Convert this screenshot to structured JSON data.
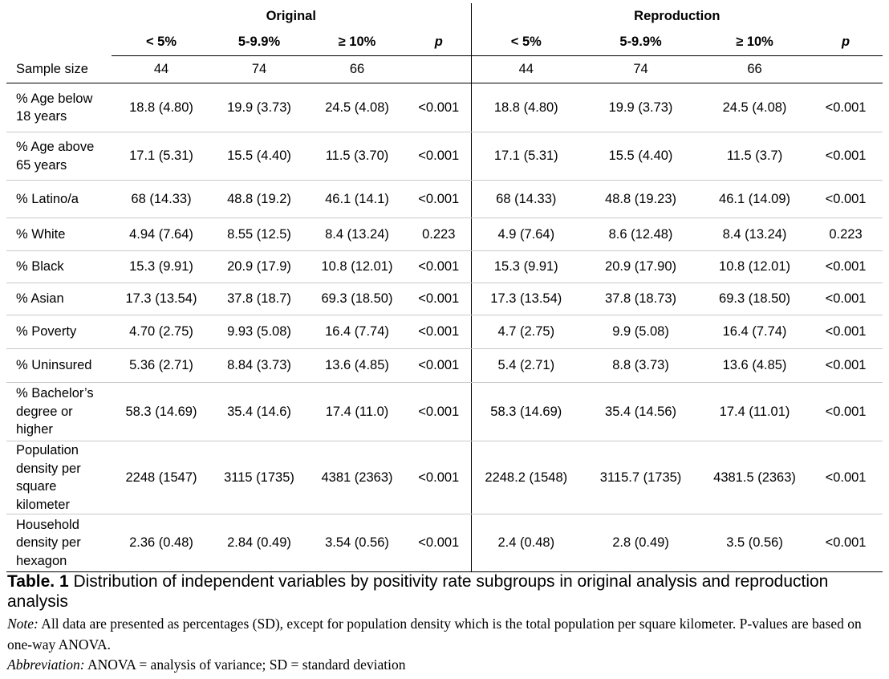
{
  "table": {
    "groups": [
      "Original",
      "Reproduction"
    ],
    "columns": [
      "< 5%",
      "5-9.9%",
      "≥ 10%",
      "p",
      "< 5%",
      "5-9.9%",
      "≥ 10%",
      "p"
    ],
    "rows": [
      {
        "label": "Sample size",
        "cells": [
          "44",
          "74",
          "66",
          "",
          "44",
          "74",
          "66",
          ""
        ],
        "h": 34
      },
      {
        "label": "% Age below 18 years",
        "cells": [
          "18.8 (4.80)",
          "19.9 (3.73)",
          "24.5 (4.08)",
          "<0.001",
          "18.8 (4.80)",
          "19.9 (3.73)",
          "24.5 (4.08)",
          "<0.001"
        ],
        "h": 61
      },
      {
        "label": "% Age above 65 years",
        "cells": [
          "17.1 (5.31)",
          "15.5 (4.40)",
          "11.5 (3.70)",
          "<0.001",
          "17.1 (5.31)",
          "15.5 (4.40)",
          "11.5 (3.7)",
          "<0.001"
        ],
        "h": 60
      },
      {
        "label": "% Latino/a",
        "cells": [
          "68 (14.33)",
          "48.8 (19.2)",
          "46.1 (14.1)",
          "<0.001",
          "68 (14.33)",
          "48.8 (19.23)",
          "46.1 (14.09)",
          "<0.001"
        ],
        "h": 47
      },
      {
        "label": "% White",
        "cells": [
          "4.94 (7.64)",
          "8.55 (12.5)",
          "8.4 (13.24)",
          "0.223",
          "4.9 (7.64)",
          "8.6 (12.48)",
          "8.4 (13.24)",
          "0.223"
        ],
        "h": 41
      },
      {
        "label": "% Black",
        "cells": [
          "15.3 (9.91)",
          "20.9 (17.9)",
          "10.8 (12.01)",
          "<0.001",
          "15.3 (9.91)",
          "20.9 (17.90)",
          "10.8 (12.01)",
          "<0.001"
        ],
        "h": 40
      },
      {
        "label": "% Asian",
        "cells": [
          "17.3 (13.54)",
          "37.8 (18.7)",
          "69.3 (18.50)",
          "<0.001",
          "17.3 (13.54)",
          "37.8 (18.73)",
          "69.3 (18.50)",
          "<0.001"
        ],
        "h": 40
      },
      {
        "label": "% Poverty",
        "cells": [
          "4.70 (2.75)",
          "9.93 (5.08)",
          "16.4 (7.74)",
          "<0.001",
          "4.7 (2.75)",
          "9.9 (5.08)",
          "16.4 (7.74)",
          "<0.001"
        ],
        "h": 42
      },
      {
        "label": "% Uninsured",
        "cells": [
          "5.36 (2.71)",
          "8.84 (3.73)",
          "13.6 (4.85)",
          "<0.001",
          "5.4 (2.71)",
          "8.8 (3.73)",
          "13.6 (4.85)",
          "<0.001"
        ],
        "h": 42
      },
      {
        "label": "% Bachelor’s degree or higher",
        "cells": [
          "58.3 (14.69)",
          "35.4 (14.6)",
          "17.4 (11.0)",
          "<0.001",
          "58.3 (14.69)",
          "35.4 (14.56)",
          "17.4 (11.01)",
          "<0.001"
        ],
        "h": 73
      },
      {
        "label": "Population density per square kilometer",
        "cells": [
          "2248 (1547)",
          "3115 (1735)",
          "4381 (2363)",
          "<0.001",
          "2248.2 (1548)",
          "3115.7 (1735)",
          "4381.5 (2363)",
          "<0.001"
        ],
        "h": 91
      },
      {
        "label": "Household density per hexagon",
        "cells": [
          "2.36 (0.48)",
          "2.84 (0.49)",
          "3.54 (0.56)",
          "<0.001",
          "2.4 (0.48)",
          "2.8 (0.49)",
          "3.5 (0.56)",
          "<0.001"
        ],
        "h": 72
      }
    ]
  },
  "caption": {
    "prefix": "Table. 1",
    "text": " Distribution of independent variables by positivity rate subgroups in original analysis and reproduction analysis"
  },
  "note": {
    "label": "Note:",
    "text": " All data are presented as percentages (SD), except for population density which is the total population per square kilometer. P-values are based on one-way ANOVA."
  },
  "abbreviation": {
    "label": "Abbreviation:",
    "text": " ANOVA = analysis of variance; SD = standard deviation"
  }
}
